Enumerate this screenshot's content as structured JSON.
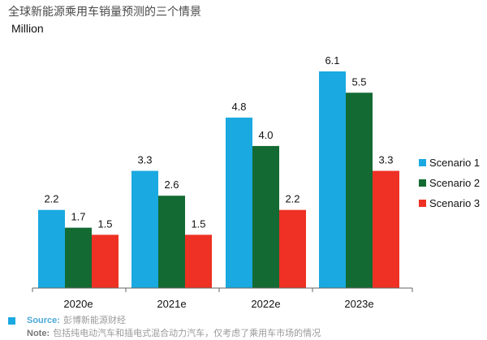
{
  "chart_data": {
    "type": "bar",
    "title": "全球新能源乘用车销量预测的三个情景",
    "unit_label": "Million",
    "categories": [
      "2020e",
      "2021e",
      "2022e",
      "2023e"
    ],
    "series": [
      {
        "name": "Scenario 1",
        "color": "#1aa9e0",
        "values": [
          2.2,
          3.3,
          4.8,
          6.1
        ]
      },
      {
        "name": "Scenario 2",
        "color": "#136a33",
        "values": [
          1.7,
          2.6,
          4.0,
          5.5
        ]
      },
      {
        "name": "Scenario 3",
        "color": "#ee3124",
        "values": [
          1.5,
          1.5,
          2.2,
          3.3
        ]
      }
    ],
    "value_labels": [
      [
        "2.2",
        "3.3",
        "4.8",
        "6.1"
      ],
      [
        "1.7",
        "2.6",
        "4.0",
        "5.5"
      ],
      [
        "1.5",
        "1.5",
        "2.2",
        "3.3"
      ]
    ],
    "ylim": [
      0,
      6.1
    ],
    "grid": false,
    "legend_position": "right"
  },
  "footer": {
    "source_key": "Source:",
    "source_text": "彭博新能源财经",
    "note_key": "Note:",
    "note_text": "包括纯电动汽车和插电式混合动力汽车，仅考虑了乘用车市场的情况"
  }
}
